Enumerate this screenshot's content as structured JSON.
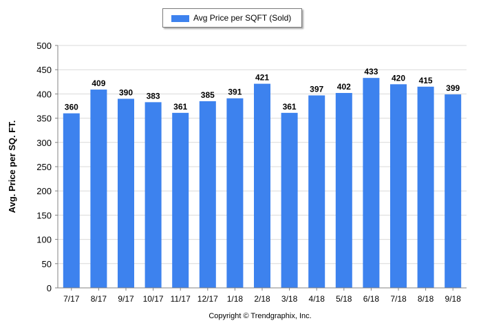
{
  "legend": {
    "label": "Avg Price per SQFT (Sold)"
  },
  "footer": {
    "copyright": "Copyright © Trendgraphix, Inc."
  },
  "colors": {
    "bar": "#3d82ee",
    "axis": "#808080",
    "grid": "#d9d9d9",
    "text": "#000000"
  },
  "chart_data": {
    "type": "bar",
    "title": "",
    "xlabel": "",
    "ylabel": "Avg. Price per SQ. FT.",
    "categories": [
      "7/17",
      "8/17",
      "9/17",
      "10/17",
      "11/17",
      "12/17",
      "1/18",
      "2/18",
      "3/18",
      "4/18",
      "5/18",
      "6/18",
      "7/18",
      "8/18",
      "9/18"
    ],
    "series": [
      {
        "name": "Avg Price per SQFT (Sold)",
        "values": [
          360,
          409,
          390,
          383,
          361,
          385,
          391,
          421,
          361,
          397,
          402,
          433,
          420,
          415,
          399
        ]
      }
    ],
    "ylim": [
      0,
      500
    ],
    "yticks": [
      0,
      50,
      100,
      150,
      200,
      250,
      300,
      350,
      400,
      450,
      500
    ],
    "grid": true,
    "legend_position": "top"
  }
}
